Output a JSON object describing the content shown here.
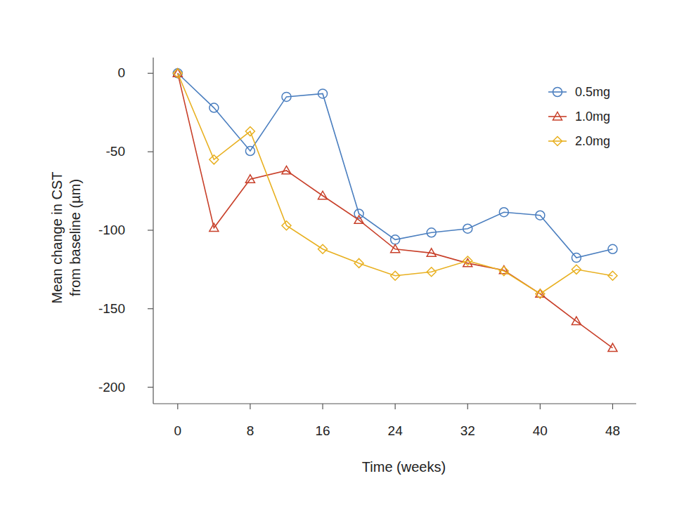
{
  "chart_data": {
    "type": "line",
    "x_label": "Time (weeks)",
    "y_label": "Mean change in CST\nfrom baseline (µm)",
    "x": [
      0,
      4,
      8,
      12,
      16,
      20,
      24,
      28,
      32,
      36,
      40,
      44,
      48
    ],
    "series": [
      {
        "name": "0.5mg",
        "color": "#4a7ebf",
        "marker": "circle",
        "values": [
          0,
          -22,
          -49.5,
          -15,
          -13,
          -89.5,
          -106,
          -101.5,
          -99,
          -88.5,
          -90.5,
          -117.5,
          -112
        ]
      },
      {
        "name": "1.0mg",
        "color": "#c8402a",
        "marker": "triangle",
        "values": [
          0,
          -98.5,
          -67.5,
          -62,
          -78,
          -93.5,
          -112,
          -114.5,
          -121,
          -125.5,
          -140.5,
          -158,
          -175
        ]
      },
      {
        "name": "2.0mg",
        "color": "#e8b020",
        "marker": "diamond",
        "values": [
          0,
          -55,
          -37,
          -97,
          -112,
          -121,
          -129,
          -126.5,
          -119.5,
          -126,
          -140.5,
          -125,
          -129
        ]
      }
    ],
    "xlim": [
      -2.7,
      50.6
    ],
    "ylim": [
      -210.5,
      10
    ],
    "xticks": [
      0,
      8,
      16,
      24,
      32,
      40,
      48
    ],
    "yticks": [
      0,
      -50,
      -100,
      -150,
      -200
    ],
    "legend": "top-right",
    "grid": false
  }
}
